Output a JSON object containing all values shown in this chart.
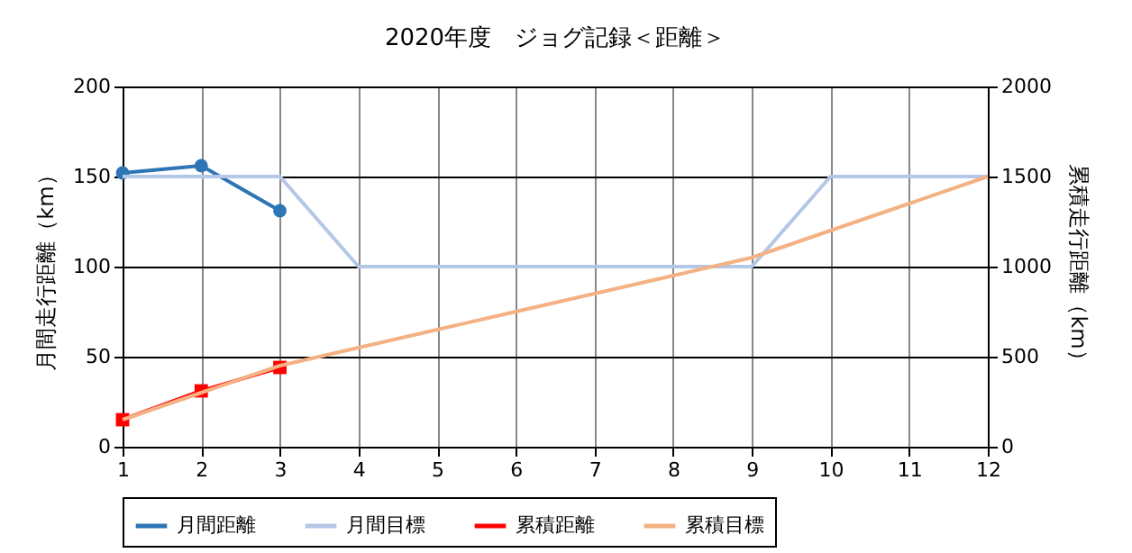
{
  "chart_data": {
    "type": "line",
    "title": "2020年度　ジョグ記録＜距離＞",
    "ylabel": "月間走行距離（km）",
    "y2label": "累積走行距離（km）",
    "x": [
      1,
      2,
      3,
      4,
      5,
      6,
      7,
      8,
      9,
      10,
      11,
      12
    ],
    "xlim": [
      1,
      12
    ],
    "xticks": [
      1,
      2,
      3,
      4,
      5,
      6,
      7,
      8,
      9,
      10,
      11,
      12
    ],
    "ylim": [
      0,
      200
    ],
    "yticks": [
      0,
      50,
      100,
      150,
      200
    ],
    "y2lim": [
      0,
      2000
    ],
    "y2ticks": [
      0,
      500,
      1000,
      1500,
      2000
    ],
    "grid": true,
    "legend": "bottom",
    "series": [
      {
        "name": "月間距離",
        "color": "#2e75b6",
        "marker": "circle",
        "values": [
          152,
          156,
          131,
          null,
          null,
          null,
          null,
          null,
          null,
          null,
          null,
          null
        ]
      },
      {
        "name": "月間目標",
        "color": "#b4c7e7",
        "marker": "none",
        "values": [
          150,
          150,
          150,
          100,
          100,
          100,
          100,
          100,
          100,
          150,
          150,
          150
        ]
      },
      {
        "name": "累積距離",
        "color": "#ff0000",
        "marker": "square",
        "axis": "y2",
        "values": [
          150,
          310,
          440,
          null,
          null,
          null,
          null,
          null,
          null,
          null,
          null,
          null
        ]
      },
      {
        "name": "累積目標",
        "color": "#f4b183",
        "marker": "none",
        "axis": "y2",
        "values": [
          150,
          300,
          450,
          550,
          650,
          750,
          850,
          950,
          1050,
          1200,
          1350,
          1500
        ]
      }
    ]
  }
}
